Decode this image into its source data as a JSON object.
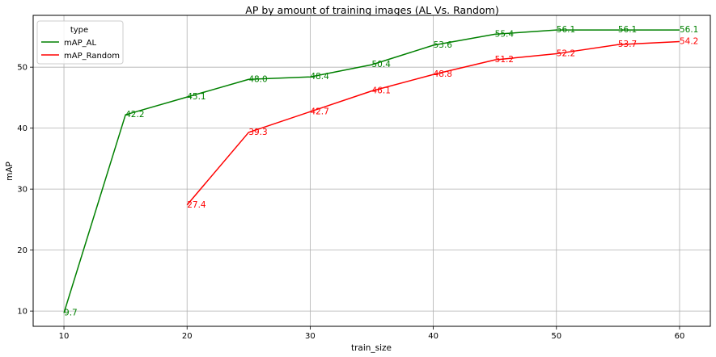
{
  "chart_data": {
    "type": "line",
    "title": "AP by amount of training images (AL Vs. Random)",
    "xlabel": "train_size",
    "ylabel": "mAP",
    "xlim": [
      7.5,
      62.5
    ],
    "ylim": [
      7.5,
      58.5
    ],
    "xticks": [
      10,
      20,
      30,
      40,
      50,
      60
    ],
    "yticks": [
      10,
      20,
      30,
      40,
      50
    ],
    "grid": true,
    "legend": {
      "title": "type",
      "placement": "top-left"
    },
    "series": [
      {
        "name": "mAP_AL",
        "color": "#008000",
        "x": [
          10,
          15,
          20,
          25,
          30,
          35,
          40,
          45,
          50,
          55,
          60
        ],
        "y": [
          9.7,
          42.2,
          45.1,
          48.0,
          48.4,
          50.4,
          53.6,
          55.4,
          56.1,
          56.1,
          56.1
        ],
        "labels": [
          "9.7",
          "42.2",
          "45.1",
          "48.0",
          "48.4",
          "50.4",
          "53.6",
          "55.4",
          "56.1",
          "56.1",
          "56.1"
        ]
      },
      {
        "name": "mAP_Random",
        "color": "#ff0000",
        "x": [
          20,
          25,
          30,
          35,
          40,
          45,
          50,
          55,
          60
        ],
        "y": [
          27.4,
          39.3,
          42.7,
          46.1,
          48.8,
          51.2,
          52.2,
          53.7,
          54.2
        ],
        "labels": [
          "27.4",
          "39.3",
          "42.7",
          "46.1",
          "48.8",
          "51.2",
          "52.2",
          "53.7",
          "54.2"
        ]
      }
    ]
  }
}
